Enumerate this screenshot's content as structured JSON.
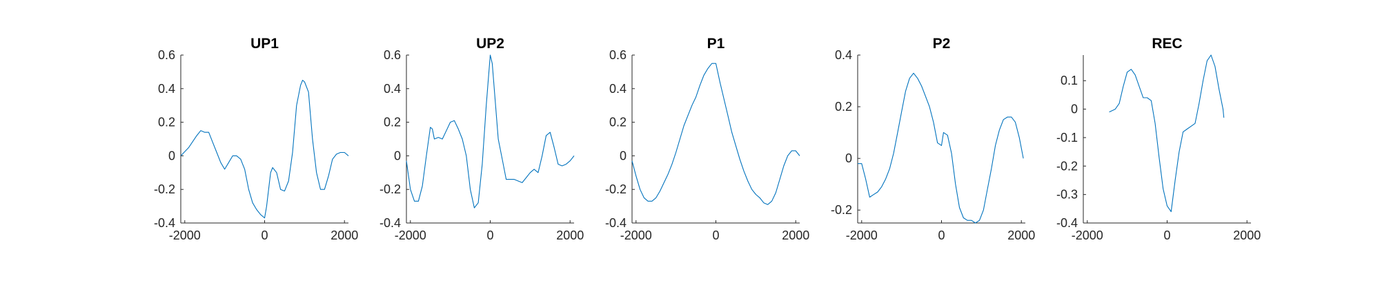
{
  "figure": {
    "background": "#ffffff",
    "line_color": "#0072bd"
  },
  "chart_data": [
    {
      "type": "line",
      "title": "UP1",
      "xlim": [
        -2100,
        2100
      ],
      "ylim": [
        -0.4,
        0.6
      ],
      "xticks": [
        -2000,
        0,
        2000
      ],
      "yticks": [
        -0.4,
        -0.2,
        0,
        0.2,
        0.4,
        0.6
      ],
      "x_tick_labels": [
        "-2000",
        "0",
        "2000"
      ],
      "y_tick_labels": [
        "-0.4",
        "-0.2",
        "0",
        "0.2",
        "0.4",
        "0.6"
      ],
      "series": [
        {
          "color": "#0072bd",
          "points": [
            [
              -2100,
              0.0
            ],
            [
              -1900,
              0.05
            ],
            [
              -1700,
              0.12
            ],
            [
              -1600,
              0.15
            ],
            [
              -1500,
              0.14
            ],
            [
              -1400,
              0.14
            ],
            [
              -1300,
              0.08
            ],
            [
              -1200,
              0.02
            ],
            [
              -1100,
              -0.04
            ],
            [
              -1000,
              -0.08
            ],
            [
              -900,
              -0.04
            ],
            [
              -800,
              0.0
            ],
            [
              -700,
              0.0
            ],
            [
              -600,
              -0.02
            ],
            [
              -500,
              -0.08
            ],
            [
              -400,
              -0.2
            ],
            [
              -300,
              -0.28
            ],
            [
              -200,
              -0.32
            ],
            [
              -100,
              -0.35
            ],
            [
              0,
              -0.37
            ],
            [
              50,
              -0.3
            ],
            [
              100,
              -0.2
            ],
            [
              150,
              -0.1
            ],
            [
              200,
              -0.07
            ],
            [
              300,
              -0.1
            ],
            [
              400,
              -0.2
            ],
            [
              500,
              -0.21
            ],
            [
              600,
              -0.15
            ],
            [
              700,
              0.02
            ],
            [
              800,
              0.3
            ],
            [
              900,
              0.42
            ],
            [
              950,
              0.45
            ],
            [
              1000,
              0.44
            ],
            [
              1100,
              0.38
            ],
            [
              1200,
              0.1
            ],
            [
              1300,
              -0.1
            ],
            [
              1400,
              -0.2
            ],
            [
              1500,
              -0.2
            ],
            [
              1600,
              -0.12
            ],
            [
              1700,
              -0.02
            ],
            [
              1800,
              0.01
            ],
            [
              1900,
              0.02
            ],
            [
              2000,
              0.02
            ],
            [
              2100,
              0.0
            ]
          ]
        }
      ]
    },
    {
      "type": "line",
      "title": "UP2",
      "xlim": [
        -2100,
        2100
      ],
      "ylim": [
        -0.4,
        0.6
      ],
      "xticks": [
        -2000,
        0,
        2000
      ],
      "yticks": [
        -0.4,
        -0.2,
        0,
        0.2,
        0.4,
        0.6
      ],
      "x_tick_labels": [
        "-2000",
        "0",
        "2000"
      ],
      "y_tick_labels": [
        "-0.4",
        "-0.2",
        "0",
        "0.2",
        "0.4",
        "0.6"
      ],
      "series": [
        {
          "color": "#0072bd",
          "points": [
            [
              -2100,
              -0.03
            ],
            [
              -2000,
              -0.2
            ],
            [
              -1900,
              -0.27
            ],
            [
              -1800,
              -0.27
            ],
            [
              -1700,
              -0.18
            ],
            [
              -1600,
              0.0
            ],
            [
              -1500,
              0.17
            ],
            [
              -1450,
              0.16
            ],
            [
              -1400,
              0.1
            ],
            [
              -1300,
              0.11
            ],
            [
              -1200,
              0.1
            ],
            [
              -1100,
              0.15
            ],
            [
              -1000,
              0.2
            ],
            [
              -900,
              0.21
            ],
            [
              -800,
              0.16
            ],
            [
              -700,
              0.1
            ],
            [
              -600,
              0.0
            ],
            [
              -500,
              -0.2
            ],
            [
              -400,
              -0.31
            ],
            [
              -300,
              -0.28
            ],
            [
              -200,
              -0.05
            ],
            [
              -100,
              0.3
            ],
            [
              0,
              0.6
            ],
            [
              50,
              0.55
            ],
            [
              100,
              0.4
            ],
            [
              200,
              0.1
            ],
            [
              300,
              -0.02
            ],
            [
              400,
              -0.14
            ],
            [
              500,
              -0.14
            ],
            [
              600,
              -0.14
            ],
            [
              700,
              -0.15
            ],
            [
              800,
              -0.16
            ],
            [
              900,
              -0.13
            ],
            [
              1000,
              -0.1
            ],
            [
              1100,
              -0.08
            ],
            [
              1200,
              -0.1
            ],
            [
              1300,
              0.0
            ],
            [
              1400,
              0.12
            ],
            [
              1500,
              0.14
            ],
            [
              1600,
              0.05
            ],
            [
              1700,
              -0.05
            ],
            [
              1800,
              -0.06
            ],
            [
              1900,
              -0.05
            ],
            [
              2000,
              -0.03
            ],
            [
              2100,
              0.0
            ]
          ]
        }
      ]
    },
    {
      "type": "line",
      "title": "P1",
      "xlim": [
        -2100,
        2100
      ],
      "ylim": [
        -0.4,
        0.6
      ],
      "xticks": [
        -2000,
        0,
        2000
      ],
      "yticks": [
        -0.4,
        -0.2,
        0,
        0.2,
        0.4,
        0.6
      ],
      "x_tick_labels": [
        "-2000",
        "0",
        "2000"
      ],
      "y_tick_labels": [
        "-0.4",
        "-0.2",
        "0",
        "0.2",
        "0.4",
        "0.6"
      ],
      "series": [
        {
          "color": "#0072bd",
          "points": [
            [
              -2100,
              -0.03
            ],
            [
              -2000,
              -0.12
            ],
            [
              -1900,
              -0.2
            ],
            [
              -1800,
              -0.25
            ],
            [
              -1700,
              -0.27
            ],
            [
              -1600,
              -0.27
            ],
            [
              -1500,
              -0.25
            ],
            [
              -1400,
              -0.21
            ],
            [
              -1300,
              -0.16
            ],
            [
              -1200,
              -0.11
            ],
            [
              -1100,
              -0.05
            ],
            [
              -1000,
              0.02
            ],
            [
              -900,
              0.1
            ],
            [
              -800,
              0.18
            ],
            [
              -700,
              0.24
            ],
            [
              -600,
              0.3
            ],
            [
              -500,
              0.35
            ],
            [
              -400,
              0.42
            ],
            [
              -300,
              0.48
            ],
            [
              -200,
              0.52
            ],
            [
              -100,
              0.55
            ],
            [
              0,
              0.55
            ],
            [
              100,
              0.44
            ],
            [
              200,
              0.34
            ],
            [
              300,
              0.24
            ],
            [
              400,
              0.14
            ],
            [
              500,
              0.06
            ],
            [
              600,
              -0.02
            ],
            [
              700,
              -0.09
            ],
            [
              800,
              -0.15
            ],
            [
              900,
              -0.2
            ],
            [
              1000,
              -0.23
            ],
            [
              1100,
              -0.25
            ],
            [
              1200,
              -0.28
            ],
            [
              1300,
              -0.29
            ],
            [
              1400,
              -0.27
            ],
            [
              1500,
              -0.22
            ],
            [
              1600,
              -0.14
            ],
            [
              1700,
              -0.06
            ],
            [
              1800,
              0.0
            ],
            [
              1900,
              0.03
            ],
            [
              2000,
              0.03
            ],
            [
              2100,
              0.0
            ]
          ]
        }
      ]
    },
    {
      "type": "line",
      "title": "P2",
      "xlim": [
        -2100,
        2100
      ],
      "ylim": [
        -0.25,
        0.4
      ],
      "xticks": [
        -2000,
        0,
        2000
      ],
      "yticks": [
        -0.2,
        0,
        0.2,
        0.4
      ],
      "x_tick_labels": [
        "-2000",
        "0",
        "2000"
      ],
      "y_tick_labels": [
        "-0.2",
        "0",
        "0.2",
        "0.4"
      ],
      "series": [
        {
          "color": "#0072bd",
          "points": [
            [
              -2100,
              -0.02
            ],
            [
              -2000,
              -0.02
            ],
            [
              -1900,
              -0.08
            ],
            [
              -1800,
              -0.15
            ],
            [
              -1700,
              -0.14
            ],
            [
              -1600,
              -0.13
            ],
            [
              -1500,
              -0.11
            ],
            [
              -1400,
              -0.08
            ],
            [
              -1300,
              -0.04
            ],
            [
              -1200,
              0.02
            ],
            [
              -1100,
              0.1
            ],
            [
              -1000,
              0.18
            ],
            [
              -900,
              0.26
            ],
            [
              -800,
              0.31
            ],
            [
              -700,
              0.33
            ],
            [
              -600,
              0.31
            ],
            [
              -500,
              0.28
            ],
            [
              -400,
              0.24
            ],
            [
              -300,
              0.2
            ],
            [
              -200,
              0.14
            ],
            [
              -100,
              0.06
            ],
            [
              0,
              0.05
            ],
            [
              50,
              0.1
            ],
            [
              150,
              0.09
            ],
            [
              250,
              0.02
            ],
            [
              350,
              -0.1
            ],
            [
              450,
              -0.19
            ],
            [
              550,
              -0.23
            ],
            [
              650,
              -0.24
            ],
            [
              750,
              -0.24
            ],
            [
              850,
              -0.25
            ],
            [
              950,
              -0.24
            ],
            [
              1050,
              -0.2
            ],
            [
              1150,
              -0.12
            ],
            [
              1250,
              -0.04
            ],
            [
              1350,
              0.05
            ],
            [
              1450,
              0.11
            ],
            [
              1550,
              0.15
            ],
            [
              1650,
              0.16
            ],
            [
              1750,
              0.16
            ],
            [
              1850,
              0.14
            ],
            [
              1950,
              0.08
            ],
            [
              2050,
              0.0
            ]
          ]
        }
      ]
    },
    {
      "type": "line",
      "title": "REC",
      "xlim": [
        -2100,
        2100
      ],
      "ylim": [
        -0.4,
        0.19
      ],
      "xticks": [
        -2000,
        0,
        2000
      ],
      "yticks": [
        -0.4,
        -0.3,
        -0.2,
        -0.1,
        0,
        0.1
      ],
      "x_tick_labels": [
        "-2000",
        "0",
        "2000"
      ],
      "y_tick_labels": [
        "-0.4",
        "-0.3",
        "-0.2",
        "-0.1",
        "0",
        "0.1"
      ],
      "series": [
        {
          "color": "#0072bd",
          "points": [
            [
              -1450,
              -0.01
            ],
            [
              -1300,
              0.0
            ],
            [
              -1200,
              0.02
            ],
            [
              -1100,
              0.08
            ],
            [
              -1000,
              0.13
            ],
            [
              -900,
              0.14
            ],
            [
              -800,
              0.12
            ],
            [
              -700,
              0.08
            ],
            [
              -600,
              0.04
            ],
            [
              -500,
              0.04
            ],
            [
              -400,
              0.03
            ],
            [
              -300,
              -0.05
            ],
            [
              -200,
              -0.17
            ],
            [
              -100,
              -0.28
            ],
            [
              0,
              -0.34
            ],
            [
              100,
              -0.36
            ],
            [
              200,
              -0.25
            ],
            [
              300,
              -0.15
            ],
            [
              400,
              -0.08
            ],
            [
              500,
              -0.07
            ],
            [
              600,
              -0.06
            ],
            [
              700,
              -0.05
            ],
            [
              800,
              0.02
            ],
            [
              900,
              0.1
            ],
            [
              1000,
              0.17
            ],
            [
              1100,
              0.19
            ],
            [
              1200,
              0.15
            ],
            [
              1300,
              0.07
            ],
            [
              1400,
              0.0
            ],
            [
              1420,
              -0.03
            ]
          ]
        }
      ]
    }
  ]
}
